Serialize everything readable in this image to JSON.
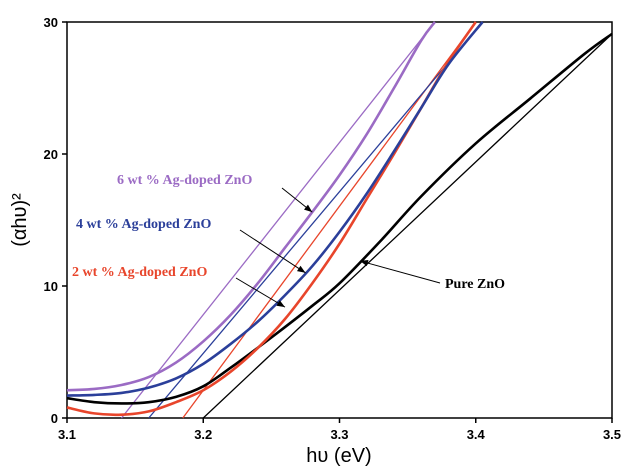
{
  "chart_data": {
    "type": "line",
    "xlabel": "hυ (eV)",
    "ylabel": "(αhυ)²",
    "xlim": [
      3.1,
      3.5
    ],
    "ylim": [
      0,
      30
    ],
    "x_ticks": [
      "3.1",
      "3.2",
      "3.3",
      "3.4",
      "3.5"
    ],
    "y_ticks": [
      "0",
      "10",
      "20",
      "30"
    ],
    "grid": false,
    "series": [
      {
        "name": "Pure ZnO",
        "color": "#000000",
        "x": [
          3.1,
          3.12,
          3.14,
          3.16,
          3.18,
          3.2,
          3.22,
          3.25,
          3.28,
          3.3,
          3.33,
          3.36,
          3.4,
          3.44,
          3.48,
          3.5
        ],
        "y": [
          1.5,
          1.2,
          1.1,
          1.2,
          1.6,
          2.4,
          3.8,
          6.1,
          8.5,
          10.2,
          13.4,
          16.8,
          20.8,
          24.2,
          27.6,
          29.1
        ]
      },
      {
        "name": "2 wt % Ag-doped ZnO",
        "color": "#e8452b",
        "x": [
          3.1,
          3.12,
          3.14,
          3.16,
          3.18,
          3.2,
          3.22,
          3.24,
          3.26,
          3.28,
          3.3,
          3.32,
          3.34,
          3.36,
          3.38,
          3.4
        ],
        "y": [
          0.8,
          0.35,
          0.25,
          0.5,
          1.2,
          2.1,
          3.5,
          5.3,
          7.5,
          10.2,
          13.2,
          16.6,
          20.0,
          23.5,
          27.0,
          30.0
        ]
      },
      {
        "name": "4 wt % Ag-doped ZnO",
        "color": "#2b3f9a",
        "x": [
          3.1,
          3.12,
          3.14,
          3.16,
          3.18,
          3.2,
          3.22,
          3.24,
          3.26,
          3.28,
          3.3,
          3.32,
          3.34,
          3.36,
          3.38,
          3.405
        ],
        "y": [
          1.7,
          1.75,
          1.9,
          2.3,
          3.0,
          4.1,
          5.6,
          7.3,
          9.3,
          11.5,
          14.1,
          17.0,
          20.2,
          23.5,
          26.8,
          30.0
        ]
      },
      {
        "name": "6 wt % Ag-doped ZnO",
        "color": "#9b6bc4",
        "x": [
          3.1,
          3.12,
          3.14,
          3.16,
          3.18,
          3.2,
          3.22,
          3.24,
          3.26,
          3.28,
          3.3,
          3.32,
          3.34,
          3.36,
          3.37
        ],
        "y": [
          2.1,
          2.2,
          2.5,
          3.1,
          4.2,
          5.8,
          7.8,
          10.2,
          12.9,
          15.6,
          18.4,
          21.5,
          25.0,
          28.6,
          30.0
        ]
      }
    ],
    "tangents": [
      {
        "series": "Pure ZnO",
        "color": "#000000",
        "x": [
          3.2,
          3.5
        ],
        "y": [
          0,
          29.1
        ]
      },
      {
        "series": "2 wt % Ag-doped ZnO",
        "color": "#e8452b",
        "x": [
          3.185,
          3.4
        ],
        "y": [
          0,
          30.0
        ]
      },
      {
        "series": "4 wt % Ag-doped ZnO",
        "color": "#2b3f9a",
        "x": [
          3.16,
          3.405
        ],
        "y": [
          0,
          30.0
        ]
      },
      {
        "series": "6 wt % Ag-doped ZnO",
        "color": "#9b6bc4",
        "x": [
          3.14,
          3.37
        ],
        "y": [
          0,
          30.0
        ]
      }
    ],
    "annotations": [
      {
        "text": "6 wt % Ag-doped ZnO",
        "color": "#9b6bc4",
        "arrow_to": [
          3.28,
          15.6
        ]
      },
      {
        "text": "4 wt % Ag-doped ZnO",
        "color": "#2b3f9a",
        "arrow_to": [
          3.275,
          11.0
        ]
      },
      {
        "text": "2 wt % Ag-doped ZnO",
        "color": "#e8452b",
        "arrow_to": [
          3.26,
          8.4
        ]
      },
      {
        "text": "Pure ZnO",
        "color": "#000000",
        "arrow_to": [
          3.315,
          11.9
        ]
      }
    ]
  }
}
